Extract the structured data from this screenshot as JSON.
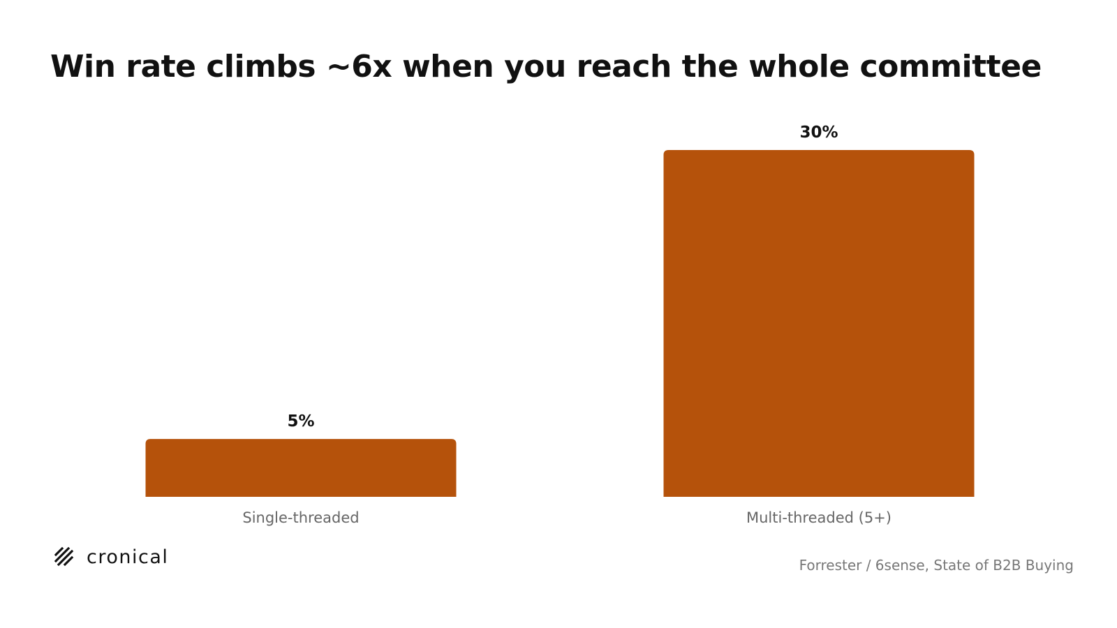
{
  "title": "Win rate climbs ~6x when you reach the whole committee",
  "chart_data": {
    "type": "bar",
    "title": "Win rate climbs ~6x when you reach the whole committee",
    "categories": [
      "Single-threaded",
      "Multi-threaded (5+)"
    ],
    "values": [
      5,
      30
    ],
    "value_labels": [
      "5%",
      "30%"
    ],
    "xlabel": "",
    "ylabel": "",
    "ylim": [
      0,
      30
    ],
    "grid": false,
    "legend": "none",
    "bar_color": "#b5520b"
  },
  "brand": {
    "name": "cronical",
    "icon": "diagonal-stripes-logo-icon"
  },
  "source": "Forrester / 6sense, State of B2B Buying",
  "colors": {
    "bar": "#b5520b",
    "text": "#111111",
    "muted": "#777777"
  }
}
